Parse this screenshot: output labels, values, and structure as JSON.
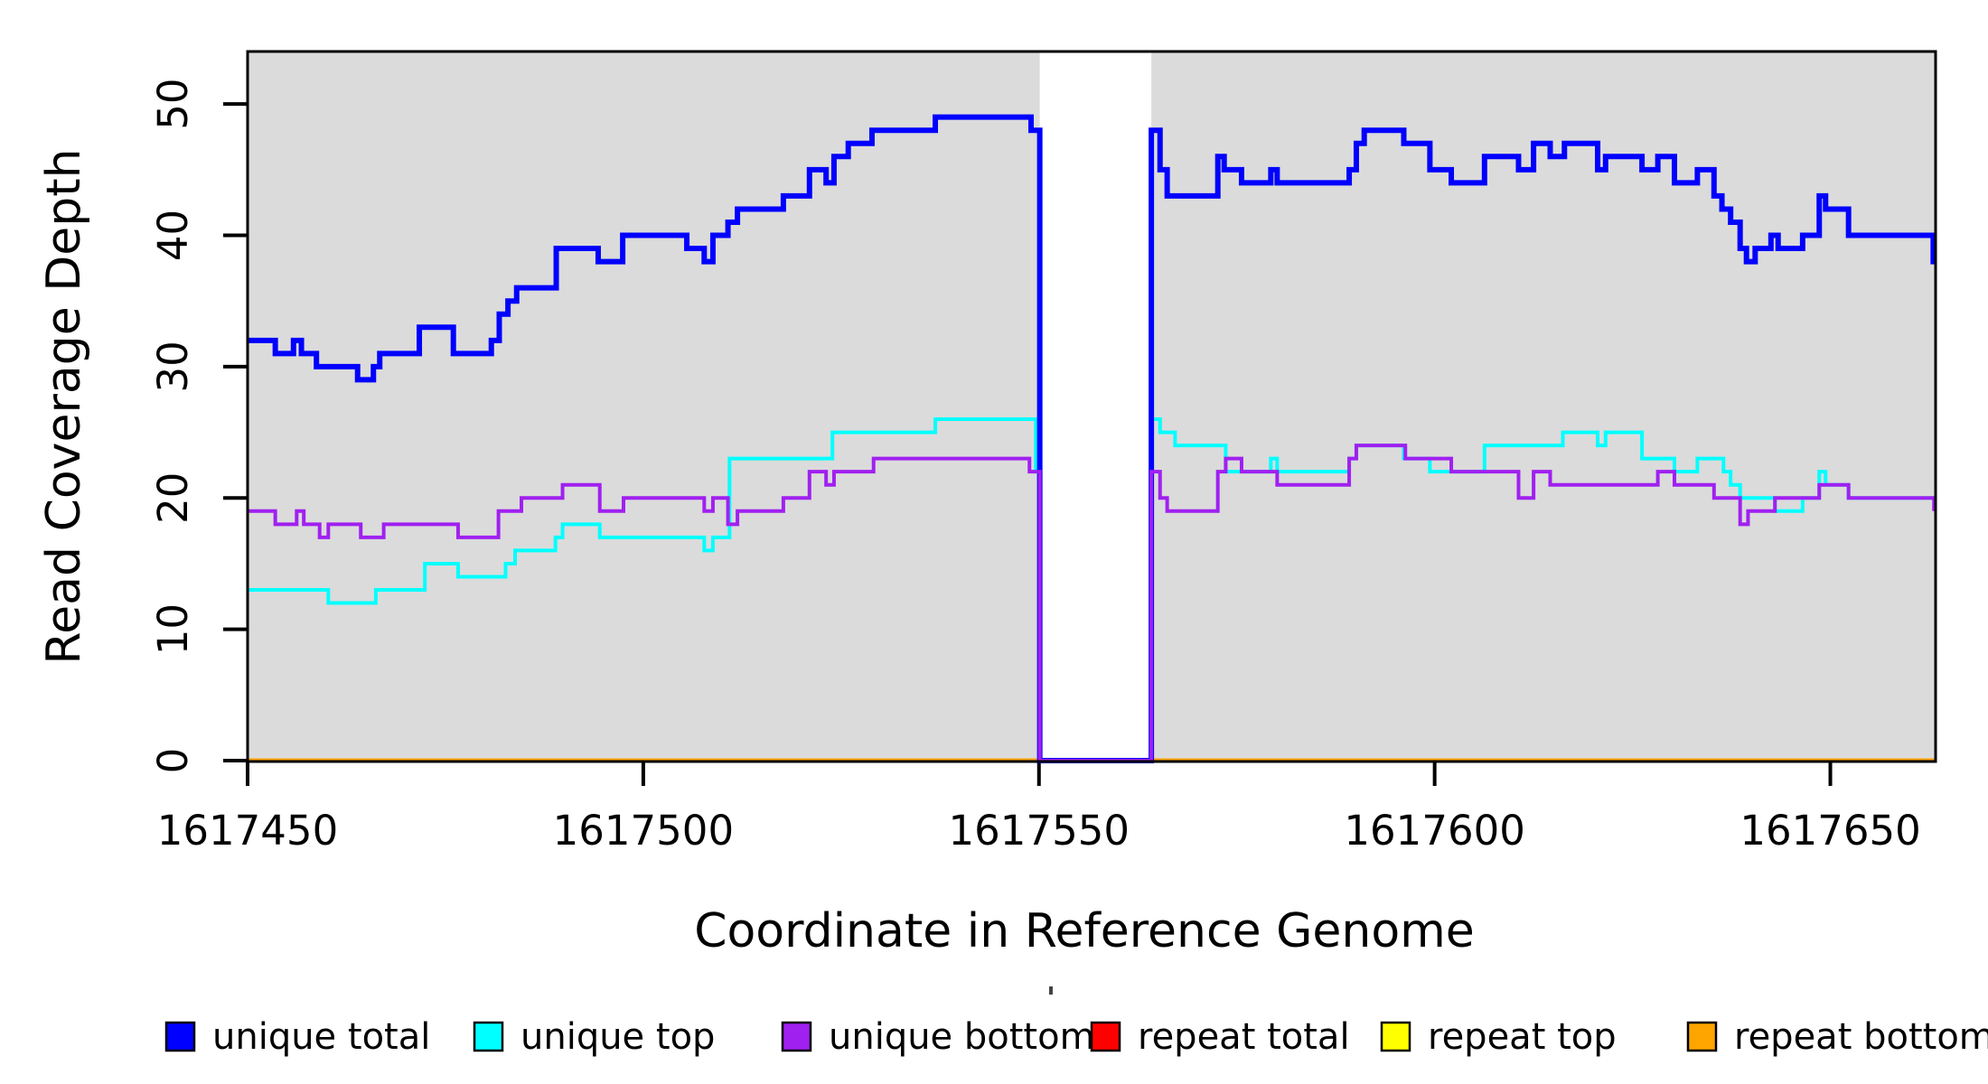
{
  "chart_data": {
    "type": "line",
    "subtype": "step-coverage",
    "title": "",
    "xlabel": "Coordinate in Reference Genome",
    "ylabel": "Read Coverage Depth",
    "xlim": [
      1617450,
      1617663.3
    ],
    "ylim": [
      0,
      54
    ],
    "xticks": [
      1617450,
      1617500,
      1617550,
      1617600,
      1617650
    ],
    "yticks": [
      0,
      10,
      20,
      30,
      40,
      50
    ],
    "grid": "off",
    "panel_background": "#DBDBDB",
    "gap_region": {
      "start": 1617550.1,
      "end": 1617564.2,
      "fill": "#FFFFFF"
    },
    "legend_position": "bottom",
    "series": [
      {
        "name": "unique total",
        "color": "#0000FF",
        "line_width": 6,
        "segments": [
          [
            [
              1617450,
              32
            ],
            [
              1617453.5,
              31
            ],
            [
              1617455.8,
              32
            ],
            [
              1617456.8,
              31
            ],
            [
              1617458.7,
              30
            ],
            [
              1617463.9,
              29
            ],
            [
              1617465.9,
              30
            ],
            [
              1617466.7,
              31
            ],
            [
              1617471.7,
              33
            ],
            [
              1617476,
              31
            ],
            [
              1617480.8,
              32
            ],
            [
              1617481.8,
              34
            ],
            [
              1617482.9,
              35
            ],
            [
              1617484,
              36
            ],
            [
              1617489,
              39
            ],
            [
              1617494.3,
              38
            ],
            [
              1617497.4,
              40
            ],
            [
              1617505.5,
              39
            ],
            [
              1617507.7,
              38
            ],
            [
              1617508.8,
              40
            ],
            [
              1617510.7,
              41
            ],
            [
              1617511.9,
              42
            ],
            [
              1617517.7,
              43
            ],
            [
              1617521,
              45
            ],
            [
              1617523.1,
              44
            ],
            [
              1617524.1,
              46
            ],
            [
              1617525.9,
              47
            ],
            [
              1617528.9,
              48
            ],
            [
              1617536.9,
              49
            ],
            [
              1617549,
              48
            ],
            [
              1617550.1,
              0
            ],
            [
              1617564.2,
              48
            ],
            [
              1617565.3,
              45
            ],
            [
              1617566.2,
              43
            ],
            [
              1617572.6,
              46
            ],
            [
              1617573.4,
              45
            ],
            [
              1617575.6,
              44
            ],
            [
              1617579.3,
              45
            ],
            [
              1617580.1,
              44
            ],
            [
              1617589.2,
              45
            ],
            [
              1617590.1,
              47
            ],
            [
              1617591.1,
              48
            ],
            [
              1617596.1,
              47
            ],
            [
              1617599.4,
              45
            ],
            [
              1617602.1,
              44
            ],
            [
              1617606.3,
              46
            ],
            [
              1617610.6,
              45
            ],
            [
              1617612.5,
              47
            ],
            [
              1617614.6,
              46
            ],
            [
              1617616.4,
              47
            ],
            [
              1617620.6,
              45
            ],
            [
              1617621.6,
              46
            ],
            [
              1617626.2,
              45
            ],
            [
              1617628.2,
              46
            ],
            [
              1617630.3,
              44
            ],
            [
              1617633.2,
              45
            ],
            [
              1617635.3,
              43
            ],
            [
              1617636.3,
              42
            ],
            [
              1617637.4,
              41
            ],
            [
              1617638.6,
              39
            ],
            [
              1617639.4,
              38
            ],
            [
              1617640.5,
              39
            ],
            [
              1617642.5,
              40
            ],
            [
              1617643.4,
              39
            ],
            [
              1617646.5,
              40
            ],
            [
              1617648.6,
              43
            ],
            [
              1617649.4,
              42
            ],
            [
              1617652.3,
              40
            ],
            [
              1617663,
              38
            ],
            [
              1617663.3,
              38
            ]
          ]
        ]
      },
      {
        "name": "unique top",
        "color": "#00FFFF",
        "line_width": 4,
        "segments": [
          [
            [
              1617450,
              13
            ],
            [
              1617460.2,
              12
            ],
            [
              1617466.2,
              13
            ],
            [
              1617472.4,
              15
            ],
            [
              1617476.6,
              14
            ],
            [
              1617482.6,
              15
            ],
            [
              1617483.8,
              16
            ],
            [
              1617488.9,
              17
            ],
            [
              1617489.8,
              18
            ],
            [
              1617494.5,
              17
            ],
            [
              1617507.7,
              16
            ],
            [
              1617508.8,
              17
            ],
            [
              1617510.9,
              23
            ],
            [
              1617523.9,
              25
            ],
            [
              1617536.9,
              26
            ],
            [
              1617549.6,
              22
            ],
            [
              1617550.1,
              0
            ],
            [
              1617564.2,
              26
            ],
            [
              1617565.3,
              25
            ],
            [
              1617567.2,
              24
            ],
            [
              1617573.6,
              22
            ],
            [
              1617579.3,
              23
            ],
            [
              1617580.1,
              22
            ],
            [
              1617589.2,
              23
            ],
            [
              1617590.1,
              24
            ],
            [
              1617596.1,
              23
            ],
            [
              1617599.4,
              22
            ],
            [
              1617606.3,
              24
            ],
            [
              1617616.2,
              25
            ],
            [
              1617620.6,
              24
            ],
            [
              1617621.6,
              25
            ],
            [
              1617626.2,
              23
            ],
            [
              1617630.3,
              22
            ],
            [
              1617633.2,
              23
            ],
            [
              1617636.5,
              22
            ],
            [
              1617637.4,
              21
            ],
            [
              1617638.6,
              20
            ],
            [
              1617643,
              19
            ],
            [
              1617646.5,
              20
            ],
            [
              1617648.6,
              22
            ],
            [
              1617649.4,
              21
            ],
            [
              1617652.3,
              20
            ],
            [
              1617663.3,
              20
            ]
          ]
        ]
      },
      {
        "name": "unique bottom",
        "color": "#A020F0",
        "line_width": 4,
        "segments": [
          [
            [
              1617450,
              19
            ],
            [
              1617453.5,
              18
            ],
            [
              1617456.2,
              19
            ],
            [
              1617457.1,
              18
            ],
            [
              1617459.1,
              17
            ],
            [
              1617460.2,
              18
            ],
            [
              1617464.3,
              17
            ],
            [
              1617467.2,
              18
            ],
            [
              1617476.6,
              17
            ],
            [
              1617481.7,
              19
            ],
            [
              1617484.6,
              20
            ],
            [
              1617489.8,
              21
            ],
            [
              1617494.5,
              19
            ],
            [
              1617497.5,
              20
            ],
            [
              1617507.7,
              19
            ],
            [
              1617508.8,
              20
            ],
            [
              1617510.7,
              18
            ],
            [
              1617511.9,
              19
            ],
            [
              1617517.7,
              20
            ],
            [
              1617521,
              22
            ],
            [
              1617523.1,
              21
            ],
            [
              1617524.1,
              22
            ],
            [
              1617529.1,
              23
            ],
            [
              1617548.8,
              22
            ],
            [
              1617550.1,
              0
            ],
            [
              1617564.2,
              22
            ],
            [
              1617565.3,
              20
            ],
            [
              1617566.2,
              19
            ],
            [
              1617572.6,
              22
            ],
            [
              1617573.6,
              23
            ],
            [
              1617575.6,
              22
            ],
            [
              1617580.1,
              21
            ],
            [
              1617589.2,
              23
            ],
            [
              1617590.1,
              24
            ],
            [
              1617596.3,
              23
            ],
            [
              1617602.1,
              22
            ],
            [
              1617610.6,
              20
            ],
            [
              1617612.5,
              22
            ],
            [
              1617614.6,
              21
            ],
            [
              1617628.2,
              22
            ],
            [
              1617630.3,
              21
            ],
            [
              1617635.3,
              20
            ],
            [
              1617638.6,
              18
            ],
            [
              1617639.6,
              19
            ],
            [
              1617643,
              20
            ],
            [
              1617648.6,
              21
            ],
            [
              1617652.3,
              20
            ],
            [
              1617663.1,
              19
            ]
          ]
        ]
      },
      {
        "name": "repeat total",
        "color": "#FF0000",
        "line_width": 4,
        "segments": [
          [
            [
              1617450,
              0
            ],
            [
              1617550.1,
              0
            ]
          ],
          [
            [
              1617564.2,
              0
            ],
            [
              1617663.3,
              0
            ]
          ]
        ]
      },
      {
        "name": "repeat top",
        "color": "#FFFF00",
        "line_width": 4,
        "segments": [
          [
            [
              1617450,
              0
            ],
            [
              1617550.1,
              0
            ]
          ],
          [
            [
              1617564.2,
              0
            ],
            [
              1617663.3,
              0
            ]
          ]
        ]
      },
      {
        "name": "repeat bottom",
        "color": "#FFA500",
        "line_width": 5,
        "segments": [
          [
            [
              1617450,
              0
            ],
            [
              1617550.1,
              0
            ]
          ],
          [
            [
              1617564.2,
              0
            ],
            [
              1617663.3,
              0
            ]
          ]
        ]
      }
    ]
  }
}
